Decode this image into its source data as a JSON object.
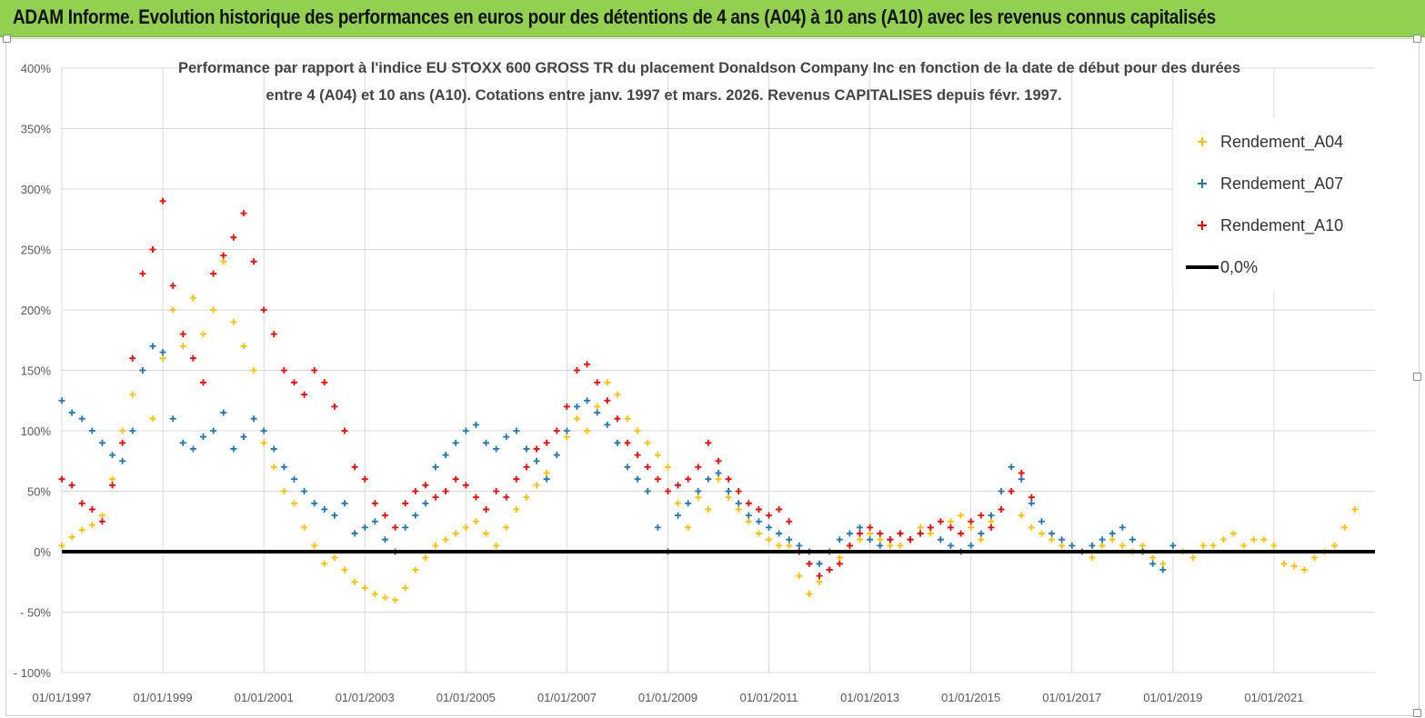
{
  "header": {
    "title": "ADAM Informe. Evolution historique des performances en euros pour des détentions de 4 ans (A04) à 10 ans (A10) avec les revenus connus capitalisés",
    "background": "#92d050"
  },
  "chart_data": {
    "type": "scatter",
    "title_line1": "Performance par rapport à l'indice EU STOXX 600 GROSS TR  du placement Donaldson Company Inc en fonction de la date de début pour des durées",
    "title_line2": "entre 4 (A04) et 10 ans (A10). Cotations entre janv. 1997 et mars. 2026. Revenus CAPITALISES depuis févr. 1997.",
    "xlabel": "",
    "ylabel": "",
    "xlim": [
      1997.0,
      2023.0
    ],
    "ylim": [
      -100,
      400
    ],
    "ytick_values": [
      -100,
      -50,
      0,
      50,
      100,
      150,
      200,
      250,
      300,
      350,
      400
    ],
    "ytick_labels": [
      "- 100%",
      "- 50%",
      "0%",
      "50%",
      "100%",
      "150%",
      "200%",
      "250%",
      "300%",
      "350%",
      "400%"
    ],
    "xtick_values": [
      1997,
      1999,
      2001,
      2003,
      2005,
      2007,
      2009,
      2011,
      2013,
      2015,
      2017,
      2019,
      2021
    ],
    "xtick_labels": [
      "01/01/1997",
      "01/01/1999",
      "01/01/2001",
      "01/01/2003",
      "01/01/2005",
      "01/01/2007",
      "01/01/2009",
      "01/01/2011",
      "01/01/2013",
      "01/01/2015",
      "01/01/2017",
      "01/01/2019",
      "01/01/2021"
    ],
    "grid": true,
    "legend_position": "top-right",
    "zero_line": {
      "name": "0,0%",
      "value": 0,
      "color": "#000000"
    },
    "series": [
      {
        "name": "Rendement_A04",
        "color": "#ffc000",
        "x": [
          1997.0,
          1997.2,
          1997.4,
          1997.6,
          1997.8,
          1998.0,
          1998.2,
          1998.4,
          1998.6,
          1998.8,
          1999.0,
          1999.2,
          1999.4,
          1999.6,
          1999.8,
          2000.0,
          2000.2,
          2000.4,
          2000.6,
          2000.8,
          2001.0,
          2001.2,
          2001.4,
          2001.6,
          2001.8,
          2002.0,
          2002.2,
          2002.4,
          2002.6,
          2002.8,
          2003.0,
          2003.2,
          2003.4,
          2003.6,
          2003.8,
          2004.0,
          2004.2,
          2004.4,
          2004.6,
          2004.8,
          2005.0,
          2005.2,
          2005.4,
          2005.6,
          2005.8,
          2006.0,
          2006.2,
          2006.4,
          2006.6,
          2006.8,
          2007.0,
          2007.2,
          2007.4,
          2007.6,
          2007.8,
          2008.0,
          2008.2,
          2008.4,
          2008.6,
          2008.8,
          2009.0,
          2009.2,
          2009.4,
          2009.6,
          2009.8,
          2010.0,
          2010.2,
          2010.4,
          2010.6,
          2010.8,
          2011.0,
          2011.2,
          2011.4,
          2011.6,
          2011.8,
          2012.0,
          2012.2,
          2012.4,
          2012.6,
          2012.8,
          2013.0,
          2013.2,
          2013.4,
          2013.6,
          2013.8,
          2014.0,
          2014.2,
          2014.4,
          2014.6,
          2014.8,
          2015.0,
          2015.2,
          2015.4,
          2015.6,
          2015.8,
          2016.0,
          2016.2,
          2016.4,
          2016.6,
          2016.8,
          2017.0,
          2017.2,
          2017.4,
          2017.6,
          2017.8,
          2018.0,
          2018.2,
          2018.4,
          2018.6,
          2018.8,
          2019.0,
          2019.2,
          2019.4,
          2019.6,
          2019.8,
          2020.0,
          2020.2,
          2020.4,
          2020.6,
          2020.8,
          2021.0,
          2021.2,
          2021.4,
          2021.6,
          2021.8,
          2022.0,
          2022.2,
          2022.4,
          2022.6
        ],
        "y": [
          5,
          12,
          18,
          22,
          30,
          60,
          100,
          130,
          150,
          110,
          160,
          200,
          170,
          210,
          180,
          200,
          240,
          190,
          170,
          150,
          90,
          70,
          50,
          40,
          20,
          5,
          -10,
          -5,
          -15,
          -25,
          -30,
          -35,
          -38,
          -40,
          -30,
          -15,
          -5,
          5,
          10,
          15,
          20,
          25,
          15,
          5,
          20,
          35,
          45,
          55,
          65,
          80,
          95,
          110,
          100,
          120,
          140,
          130,
          110,
          100,
          90,
          80,
          70,
          40,
          20,
          45,
          35,
          60,
          45,
          35,
          25,
          15,
          10,
          5,
          5,
          -20,
          -35,
          -25,
          -15,
          -5,
          5,
          10,
          15,
          10,
          5,
          5,
          10,
          20,
          15,
          10,
          25,
          30,
          20,
          10,
          25,
          35,
          50,
          30,
          20,
          15,
          10,
          5,
          5,
          0,
          -5,
          5,
          10,
          5,
          0,
          5,
          -5,
          -10,
          5,
          0,
          -5,
          5,
          5,
          10,
          15,
          5,
          10,
          10,
          5,
          -10,
          -12,
          -15,
          -5,
          0,
          5,
          20,
          35
        ]
      },
      {
        "name": "Rendement_A07",
        "color": "#1f77b4",
        "x": [
          1997.0,
          1997.2,
          1997.4,
          1997.6,
          1997.8,
          1998.0,
          1998.2,
          1998.4,
          1998.6,
          1998.8,
          1999.0,
          1999.2,
          1999.4,
          1999.6,
          1999.8,
          2000.0,
          2000.2,
          2000.4,
          2000.6,
          2000.8,
          2001.0,
          2001.2,
          2001.4,
          2001.6,
          2001.8,
          2002.0,
          2002.2,
          2002.4,
          2002.6,
          2002.8,
          2003.0,
          2003.2,
          2003.4,
          2003.6,
          2003.8,
          2004.0,
          2004.2,
          2004.4,
          2004.6,
          2004.8,
          2005.0,
          2005.2,
          2005.4,
          2005.6,
          2005.8,
          2006.0,
          2006.2,
          2006.4,
          2006.6,
          2006.8,
          2007.0,
          2007.2,
          2007.4,
          2007.6,
          2007.8,
          2008.0,
          2008.2,
          2008.4,
          2008.6,
          2008.8,
          2009.0,
          2009.2,
          2009.4,
          2009.6,
          2009.8,
          2010.0,
          2010.2,
          2010.4,
          2010.6,
          2010.8,
          2011.0,
          2011.2,
          2011.4,
          2011.6,
          2011.8,
          2012.0,
          2012.2,
          2012.4,
          2012.6,
          2012.8,
          2013.0,
          2013.2,
          2013.4,
          2013.6,
          2013.8,
          2014.0,
          2014.2,
          2014.4,
          2014.6,
          2014.8,
          2015.0,
          2015.2,
          2015.4,
          2015.6,
          2015.8,
          2016.0,
          2016.2,
          2016.4,
          2016.6,
          2016.8,
          2017.0,
          2017.2,
          2017.4,
          2017.6,
          2017.8,
          2018.0,
          2018.2,
          2018.4,
          2018.6,
          2018.8,
          2019.0
        ],
        "y": [
          125,
          115,
          110,
          100,
          90,
          80,
          75,
          100,
          150,
          170,
          165,
          110,
          90,
          85,
          95,
          100,
          115,
          85,
          95,
          110,
          100,
          85,
          70,
          60,
          50,
          40,
          35,
          30,
          40,
          15,
          20,
          25,
          10,
          0,
          20,
          30,
          40,
          70,
          80,
          90,
          100,
          105,
          90,
          85,
          95,
          100,
          85,
          75,
          60,
          80,
          100,
          120,
          125,
          115,
          105,
          90,
          70,
          60,
          50,
          20,
          0,
          30,
          40,
          50,
          60,
          65,
          50,
          40,
          30,
          25,
          20,
          15,
          10,
          5,
          0,
          -10,
          0,
          10,
          15,
          20,
          10,
          5,
          10,
          15,
          10,
          15,
          20,
          10,
          5,
          0,
          5,
          15,
          30,
          50,
          70,
          60,
          40,
          25,
          15,
          10,
          5,
          0,
          5,
          10,
          15,
          20,
          10,
          0,
          -10,
          -15,
          5
        ]
      },
      {
        "name": "Rendement_A10",
        "color": "#ff0000",
        "x": [
          1997.0,
          1997.2,
          1997.4,
          1997.6,
          1997.8,
          1998.0,
          1998.2,
          1998.4,
          1998.6,
          1998.8,
          1999.0,
          1999.2,
          1999.4,
          1999.6,
          1999.8,
          2000.0,
          2000.2,
          2000.4,
          2000.6,
          2000.8,
          2001.0,
          2001.2,
          2001.4,
          2001.6,
          2001.8,
          2002.0,
          2002.2,
          2002.4,
          2002.6,
          2002.8,
          2003.0,
          2003.2,
          2003.4,
          2003.6,
          2003.8,
          2004.0,
          2004.2,
          2004.4,
          2004.6,
          2004.8,
          2005.0,
          2005.2,
          2005.4,
          2005.6,
          2005.8,
          2006.0,
          2006.2,
          2006.4,
          2006.6,
          2006.8,
          2007.0,
          2007.2,
          2007.4,
          2007.6,
          2007.8,
          2008.0,
          2008.2,
          2008.4,
          2008.6,
          2008.8,
          2009.0,
          2009.2,
          2009.4,
          2009.6,
          2009.8,
          2010.0,
          2010.2,
          2010.4,
          2010.6,
          2010.8,
          2011.0,
          2011.2,
          2011.4,
          2011.6,
          2011.8,
          2012.0,
          2012.2,
          2012.4,
          2012.6,
          2012.8,
          2013.0,
          2013.2,
          2013.4,
          2013.6,
          2013.8,
          2014.0,
          2014.2,
          2014.4,
          2014.6,
          2014.8,
          2015.0,
          2015.2,
          2015.4,
          2015.6,
          2015.8,
          2016.0,
          2016.2
        ],
        "y": [
          60,
          55,
          40,
          35,
          25,
          55,
          90,
          160,
          230,
          250,
          290,
          220,
          180,
          160,
          140,
          230,
          245,
          260,
          280,
          240,
          200,
          180,
          150,
          140,
          130,
          150,
          140,
          120,
          100,
          70,
          60,
          40,
          30,
          20,
          40,
          50,
          55,
          45,
          50,
          60,
          55,
          45,
          35,
          50,
          45,
          60,
          70,
          85,
          90,
          100,
          120,
          150,
          155,
          140,
          125,
          110,
          90,
          80,
          70,
          60,
          50,
          55,
          60,
          70,
          90,
          75,
          60,
          50,
          40,
          35,
          30,
          35,
          25,
          0,
          -10,
          -20,
          -15,
          -10,
          5,
          15,
          20,
          15,
          10,
          15,
          10,
          15,
          20,
          25,
          20,
          15,
          25,
          30,
          20,
          35,
          50,
          65,
          45
        ]
      }
    ]
  }
}
